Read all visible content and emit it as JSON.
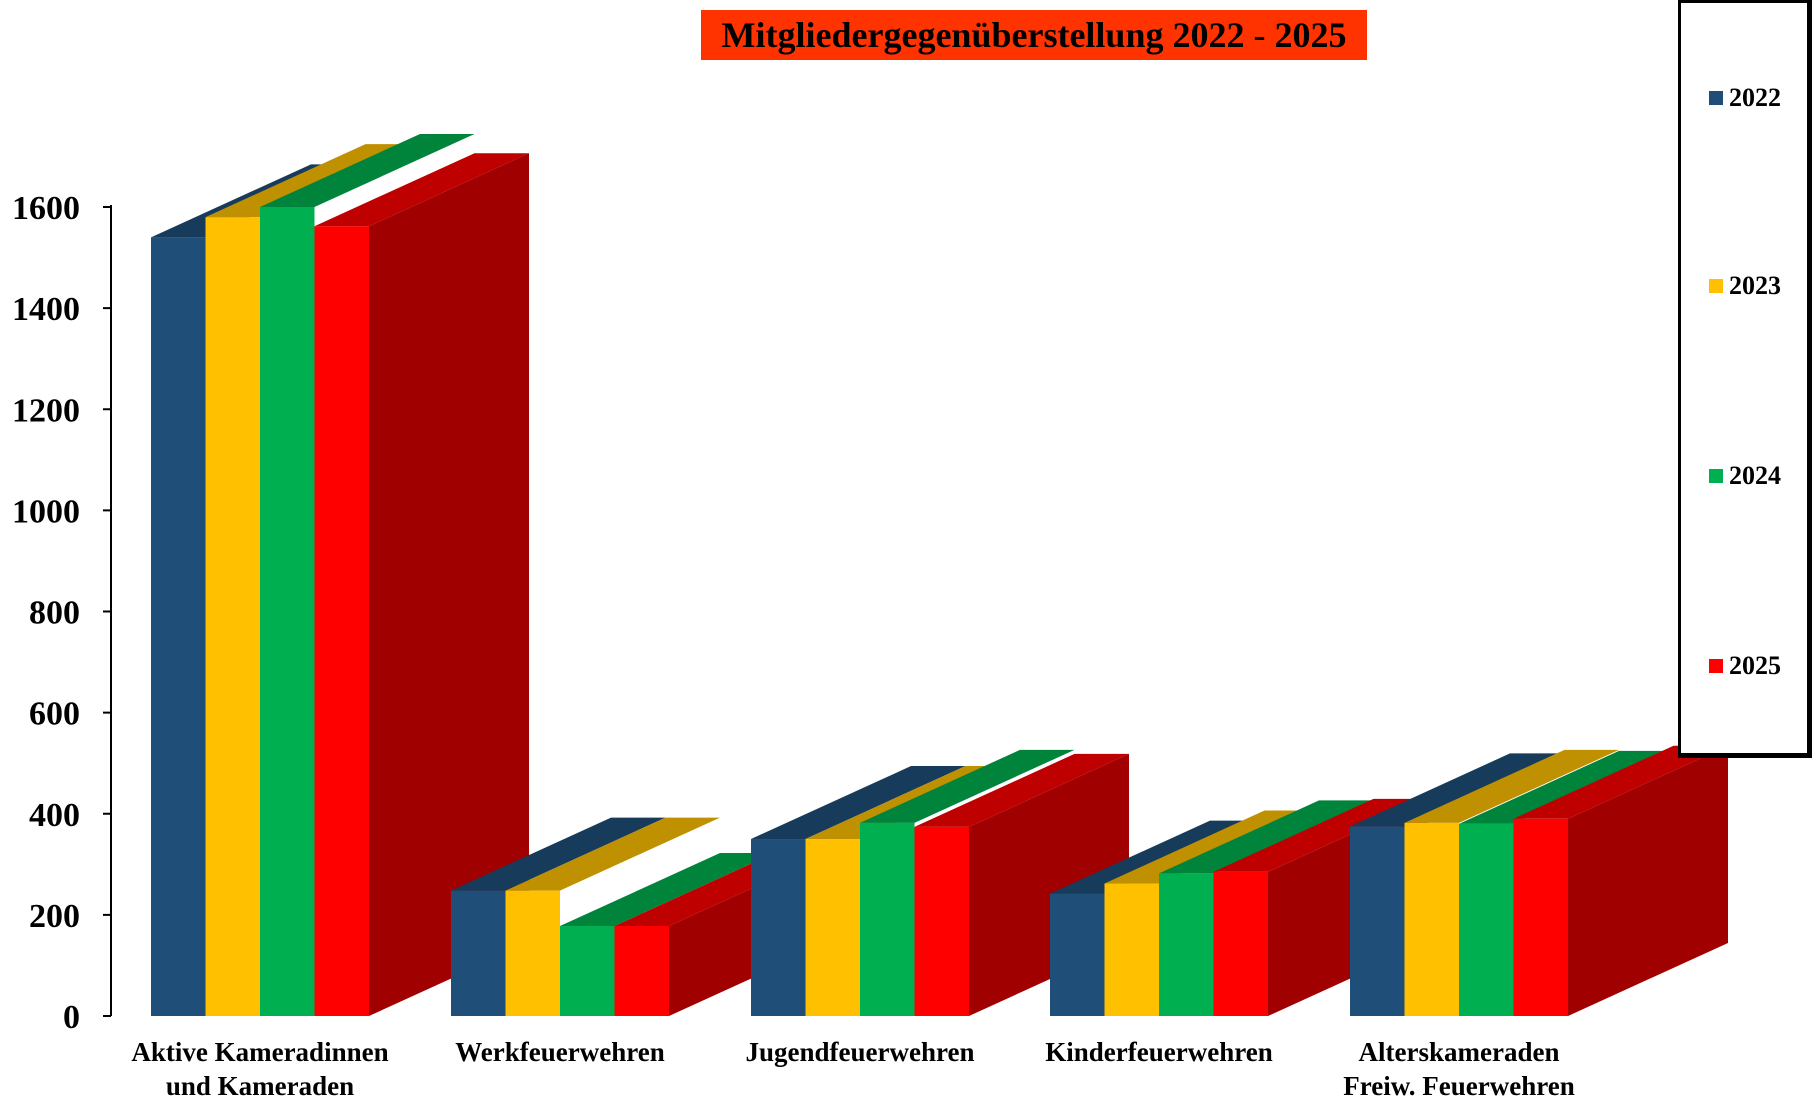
{
  "chart_data": {
    "type": "bar",
    "title": "Mitgliedergegenüberstellung 2022 - 2025",
    "categories": [
      [
        "Aktive Kameradinnen",
        "und Kameraden"
      ],
      [
        "Werkfeuerwehren"
      ],
      [
        "Jugendfeuerwehren"
      ],
      [
        "Kinderfeuerwehren"
      ],
      [
        "Alterskameraden",
        "Freiw. Feuerwehren"
      ]
    ],
    "series": [
      {
        "name": "2022",
        "values": [
          1540,
          248,
          350,
          242,
          375
        ],
        "color": "#1f4e79"
      },
      {
        "name": "2023",
        "values": [
          1580,
          248,
          350,
          262,
          382
        ],
        "color": "#ffc000"
      },
      {
        "name": "2024",
        "values": [
          1600,
          178,
          382,
          282,
          380
        ],
        "color": "#00b050"
      },
      {
        "name": "2025",
        "values": [
          1562,
          178,
          374,
          285,
          390
        ],
        "color": "#ff0000"
      }
    ],
    "yticks": [
      "0",
      "200",
      "400",
      "600",
      "800",
      "1000",
      "1200",
      "1400",
      "1600"
    ],
    "ylim": [
      0,
      1600
    ],
    "legend_placement": "right",
    "style": "3D clustered columns"
  },
  "colors": {
    "title_background": "#ff3300",
    "side_face": "#a00000"
  }
}
